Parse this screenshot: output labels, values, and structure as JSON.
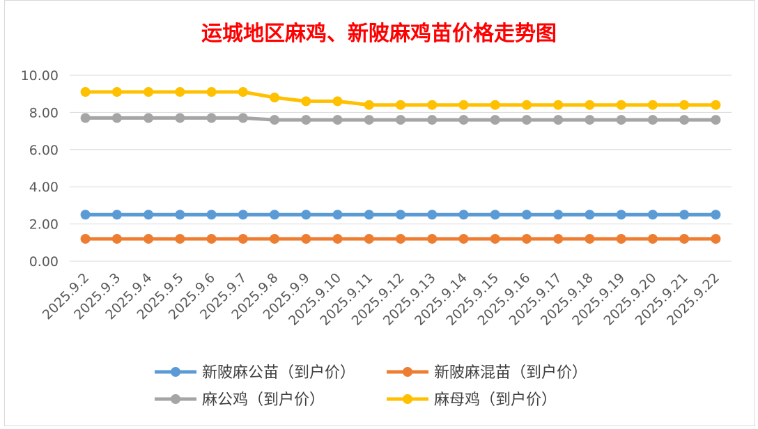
{
  "chart_data": {
    "type": "line",
    "title": "运城地区麻鸡、新陂麻鸡苗价格走势图",
    "title_color": "#ff0000",
    "categories": [
      "2025.9.2",
      "2025.9.3",
      "2025.9.4",
      "2025.9.5",
      "2025.9.6",
      "2025.9.7",
      "2025.9.8",
      "2025.9.9",
      "2025.9.10",
      "2025.9.11",
      "2025.9.12",
      "2025.9.13",
      "2025.9.14",
      "2025.9.15",
      "2025.9.16",
      "2025.9.17",
      "2025.9.18",
      "2025.9.19",
      "2025.9.20",
      "2025.9.21",
      "2025.9.22"
    ],
    "ylim": [
      0,
      10
    ],
    "ytick_values": [
      0,
      2,
      4,
      6,
      8,
      10
    ],
    "ytick_labels": [
      "0.00",
      "2.00",
      "4.00",
      "6.00",
      "8.00",
      "10.00"
    ],
    "grid": true,
    "legend_position": "bottom",
    "series": [
      {
        "name": "新陂麻公苗（到户价）",
        "color": "#5b9bd5",
        "values": [
          2.5,
          2.5,
          2.5,
          2.5,
          2.5,
          2.5,
          2.5,
          2.5,
          2.5,
          2.5,
          2.5,
          2.5,
          2.5,
          2.5,
          2.5,
          2.5,
          2.5,
          2.5,
          2.5,
          2.5,
          2.5
        ]
      },
      {
        "name": "新陂麻混苗（到户价）",
        "color": "#ed7d31",
        "values": [
          1.2,
          1.2,
          1.2,
          1.2,
          1.2,
          1.2,
          1.2,
          1.2,
          1.2,
          1.2,
          1.2,
          1.2,
          1.2,
          1.2,
          1.2,
          1.2,
          1.2,
          1.2,
          1.2,
          1.2,
          1.2
        ]
      },
      {
        "name": "麻公鸡（到户价）",
        "color": "#a5a5a5",
        "values": [
          7.7,
          7.7,
          7.7,
          7.7,
          7.7,
          7.7,
          7.6,
          7.6,
          7.6,
          7.6,
          7.6,
          7.6,
          7.6,
          7.6,
          7.6,
          7.6,
          7.6,
          7.6,
          7.6,
          7.6,
          7.6
        ]
      },
      {
        "name": "麻母鸡（到户价）",
        "color": "#ffc000",
        "values": [
          9.1,
          9.1,
          9.1,
          9.1,
          9.1,
          9.1,
          8.8,
          8.6,
          8.6,
          8.4,
          8.4,
          8.4,
          8.4,
          8.4,
          8.4,
          8.4,
          8.4,
          8.4,
          8.4,
          8.4,
          8.4
        ]
      }
    ]
  }
}
